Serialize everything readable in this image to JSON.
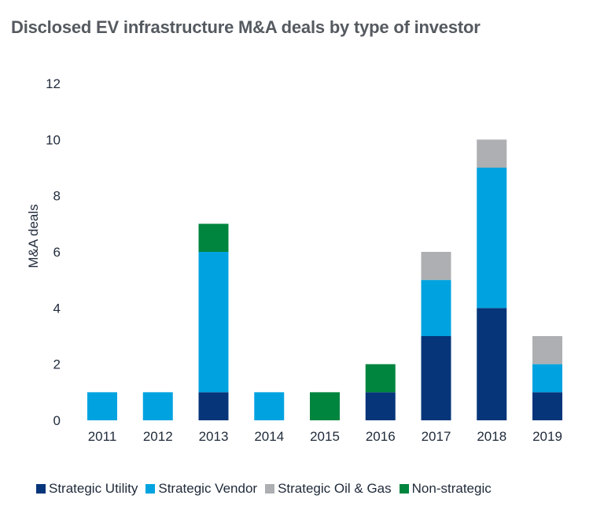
{
  "chart_data": {
    "type": "bar",
    "stacked": true,
    "title": "Disclosed EV infrastructure M&A deals by type of investor",
    "xlabel": "",
    "ylabel": "M&A deals",
    "ylim": [
      0,
      12
    ],
    "yticks": [
      0,
      2,
      4,
      6,
      8,
      10,
      12
    ],
    "grid": false,
    "legend_position": "bottom",
    "categories": [
      "2011",
      "2012",
      "2013",
      "2014",
      "2015",
      "2016",
      "2017",
      "2018",
      "2019"
    ],
    "series": [
      {
        "name": "Strategic Utility",
        "color": "#06357a",
        "values": [
          0,
          0,
          1,
          0,
          0,
          1,
          3,
          4,
          1
        ]
      },
      {
        "name": "Strategic Vendor",
        "color": "#00a3e0",
        "values": [
          1,
          1,
          5,
          1,
          0,
          0,
          2,
          5,
          1
        ]
      },
      {
        "name": "Strategic Oil & Gas",
        "color": "#adafb2",
        "values": [
          0,
          0,
          0,
          0,
          0,
          0,
          1,
          1,
          1
        ]
      },
      {
        "name": "Non-strategic",
        "color": "#00853f",
        "values": [
          0,
          0,
          1,
          0,
          1,
          1,
          0,
          0,
          0
        ]
      }
    ]
  }
}
